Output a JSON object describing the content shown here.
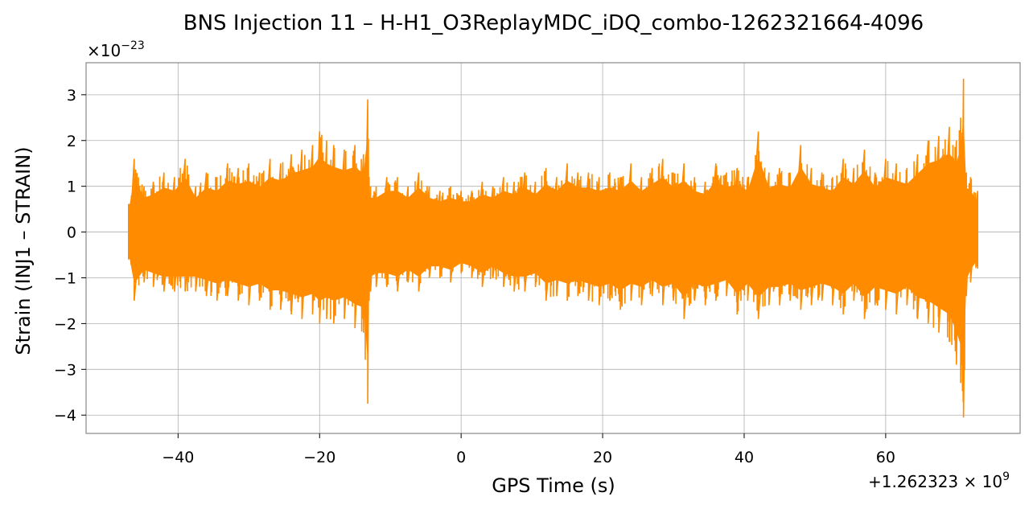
{
  "chart_data": {
    "type": "line",
    "title": "BNS Injection 11 – H-H1_O3ReplayMDC_iDQ_combo-1262321664-4096",
    "xlabel": "GPS Time (s)",
    "ylabel": "Strain (INJ1 – STRAIN)",
    "x_offset_label": "+1.262323 × 10",
    "x_offset_exponent": "9",
    "y_scale_label": "×10",
    "y_scale_exponent": "−23",
    "xlim": [
      -53,
      79
    ],
    "ylim": [
      -4.4,
      3.7
    ],
    "x_ticks": [
      -40,
      -20,
      0,
      20,
      40,
      60
    ],
    "x_tick_labels": [
      "−40",
      "−20",
      "0",
      "20",
      "40",
      "60"
    ],
    "y_ticks": [
      3,
      2,
      1,
      0,
      -1,
      -2,
      -3,
      -4
    ],
    "y_tick_labels": [
      "3",
      "2",
      "1",
      "0",
      "−1",
      "−2",
      "−3",
      "−4"
    ],
    "grid": true,
    "line_color": "#ff8c00",
    "series": [
      {
        "x": [
          -47,
          -46.2,
          -44.8,
          -43.5,
          -42,
          -40.5,
          -39,
          -37.5,
          -36,
          -34.5,
          -33,
          -31.5,
          -30,
          -28.5,
          -27,
          -25.5,
          -24,
          -22.5,
          -21,
          -20,
          -19,
          -18,
          -16.5,
          -15,
          -13.8,
          -13.2,
          -13.0,
          -12.8,
          -12,
          -10.5,
          -9,
          -7.5,
          -6,
          -4.5,
          -3,
          -1.5,
          0,
          1.5,
          3,
          4.5,
          6,
          7.5,
          9,
          10.5,
          12,
          13.5,
          15,
          16.5,
          18,
          19.5,
          21,
          22.5,
          24,
          25.5,
          27,
          28.5,
          30,
          31.5,
          33,
          34.5,
          36,
          37.5,
          39,
          40.5,
          42,
          43.5,
          45,
          46.5,
          48,
          49.5,
          51,
          52.5,
          54,
          55.5,
          57,
          58.5,
          60,
          61.5,
          63,
          64.5,
          66,
          67.5,
          69,
          70,
          70.6,
          71.0,
          71.4,
          72,
          73
        ],
        "upper": [
          0.6,
          1.6,
          1.0,
          1.1,
          1.3,
          1.2,
          1.6,
          1.0,
          1.3,
          1.2,
          1.5,
          1.4,
          1.5,
          1.3,
          1.6,
          1.5,
          1.7,
          1.8,
          1.9,
          2.2,
          2.0,
          1.9,
          1.8,
          1.9,
          1.7,
          2.9,
          1.2,
          1.0,
          1.0,
          1.2,
          1.2,
          1.0,
          1.3,
          1.0,
          0.9,
          1.0,
          0.9,
          0.9,
          1.1,
          1.0,
          1.2,
          1.1,
          1.3,
          1.1,
          1.4,
          1.2,
          1.5,
          1.3,
          1.3,
          1.2,
          1.3,
          1.2,
          1.5,
          1.2,
          1.4,
          1.6,
          1.3,
          1.5,
          1.2,
          1.1,
          1.5,
          1.3,
          1.4,
          1.2,
          2.2,
          1.3,
          1.4,
          1.3,
          1.9,
          1.4,
          1.3,
          1.2,
          1.6,
          1.4,
          1.8,
          1.3,
          1.6,
          1.5,
          1.4,
          1.7,
          2.0,
          2.1,
          2.3,
          2.0,
          2.5,
          3.35,
          1.3,
          1.2,
          0.9
        ],
        "lower": [
          -0.6,
          -1.5,
          -1.1,
          -1.2,
          -1.3,
          -1.3,
          -1.3,
          -1.3,
          -1.4,
          -1.5,
          -1.4,
          -1.5,
          -1.6,
          -1.5,
          -1.7,
          -1.7,
          -1.8,
          -1.9,
          -1.8,
          -2.0,
          -1.9,
          -2.0,
          -1.9,
          -2.1,
          -2.2,
          -3.75,
          -1.5,
          -1.3,
          -1.2,
          -1.2,
          -1.3,
          -1.1,
          -1.3,
          -1.0,
          -1.0,
          -1.1,
          -0.9,
          -1.0,
          -1.2,
          -1.0,
          -1.2,
          -1.3,
          -1.3,
          -1.2,
          -1.5,
          -1.4,
          -1.5,
          -1.4,
          -1.5,
          -1.6,
          -1.5,
          -1.7,
          -1.5,
          -1.6,
          -1.4,
          -1.6,
          -1.5,
          -1.9,
          -1.5,
          -1.6,
          -1.5,
          -1.4,
          -1.8,
          -1.5,
          -1.9,
          -1.6,
          -1.6,
          -1.5,
          -1.7,
          -1.6,
          -1.5,
          -1.6,
          -1.8,
          -1.5,
          -1.9,
          -1.6,
          -1.7,
          -1.8,
          -1.6,
          -1.9,
          -2.0,
          -2.2,
          -2.4,
          -2.9,
          -3.3,
          -4.05,
          -1.4,
          -1.1,
          -0.8
        ]
      }
    ]
  }
}
